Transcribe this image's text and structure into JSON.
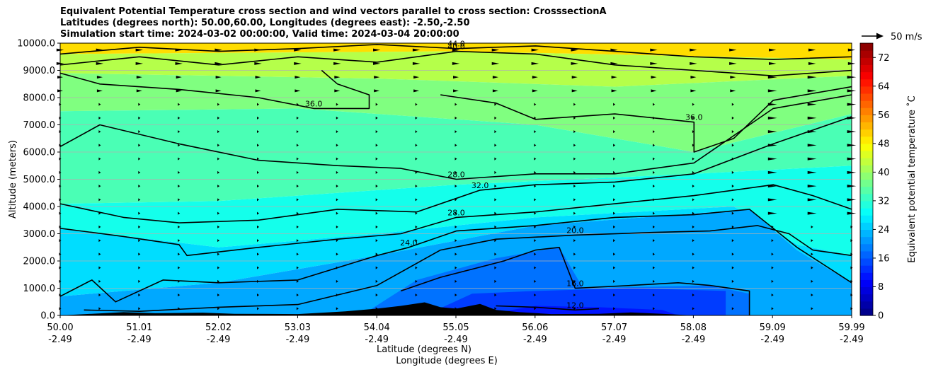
{
  "title_lines": [
    "Equivalent Potential Temperature cross section and wind vectors parallel to cross section: CrosssectionA",
    "Latitudes (degrees north): 50.00,60.00, Longitudes (degrees east): -2.50,-2.50",
    "Simulation start time: 2024-03-02 00:00:00, Valid time: 2024-03-04 20:00:00"
  ],
  "chart_data": {
    "type": "heatmap",
    "subtype": "cross-section contour fill with wind vectors",
    "ylabel": "Altitude (meters)",
    "xlabel_line1": "Latitude (degrees N)",
    "xlabel_line2": "Longitude (degrees E)",
    "ylim": [
      0,
      10000
    ],
    "y_ticks": [
      "0.0",
      "1000.0",
      "2000.0",
      "3000.0",
      "4000.0",
      "5000.0",
      "6000.0",
      "7000.0",
      "8000.0",
      "9000.0",
      "10000.0"
    ],
    "x_ticks": [
      {
        "lat": "50.00",
        "lon": "-2.49"
      },
      {
        "lat": "51.01",
        "lon": "-2.49"
      },
      {
        "lat": "52.02",
        "lon": "-2.49"
      },
      {
        "lat": "53.03",
        "lon": "-2.49"
      },
      {
        "lat": "54.04",
        "lon": "-2.49"
      },
      {
        "lat": "55.05",
        "lon": "-2.49"
      },
      {
        "lat": "56.06",
        "lon": "-2.49"
      },
      {
        "lat": "57.07",
        "lon": "-2.49"
      },
      {
        "lat": "58.08",
        "lon": "-2.49"
      },
      {
        "lat": "59.09",
        "lon": "-2.49"
      },
      {
        "lat": "59.99",
        "lon": "-2.49"
      }
    ],
    "grid": true,
    "colorbar": {
      "label": "Equivalent potential temperature ˚C",
      "vmin": 0,
      "vmax": 76,
      "step": 2,
      "ticks": [
        "0",
        "8",
        "16",
        "24",
        "32",
        "40",
        "48",
        "56",
        "64",
        "72"
      ]
    },
    "wind_key": {
      "label": "50 m/s"
    },
    "contours": [
      {
        "level": 12.0,
        "label": "12.0",
        "points": [
          [
            55.5,
            350
          ],
          [
            56.0,
            300
          ],
          [
            56.5,
            200
          ],
          [
            56.8,
            250
          ]
        ]
      },
      {
        "level": 16.0,
        "label": "16.0",
        "points": [
          [
            54.3,
            900
          ],
          [
            54.8,
            1400
          ],
          [
            55.2,
            1700
          ],
          [
            55.6,
            2000
          ],
          [
            56.0,
            2400
          ],
          [
            56.3,
            2500
          ],
          [
            56.5,
            1000
          ],
          [
            57.2,
            1100
          ],
          [
            57.8,
            1200
          ],
          [
            58.2,
            1100
          ],
          [
            58.7,
            900
          ],
          [
            58.7,
            0
          ]
        ]
      },
      {
        "level": 20.0,
        "label": "20.0",
        "points": [
          [
            50.3,
            200
          ],
          [
            51.0,
            150
          ],
          [
            52.0,
            300
          ],
          [
            53.0,
            400
          ],
          [
            54.0,
            1100
          ],
          [
            54.8,
            2400
          ],
          [
            55.5,
            2800
          ],
          [
            56.5,
            2950
          ],
          [
            57.5,
            3050
          ],
          [
            58.2,
            3100
          ],
          [
            58.8,
            3300
          ],
          [
            59.2,
            3000
          ],
          [
            59.5,
            2400
          ],
          [
            59.99,
            2200
          ]
        ]
      },
      {
        "level": 24.0,
        "label": "24.0",
        "points": [
          [
            50.0,
            700
          ],
          [
            50.4,
            1300
          ],
          [
            50.7,
            500
          ],
          [
            51.3,
            1300
          ],
          [
            52.0,
            1200
          ],
          [
            53.0,
            1300
          ],
          [
            54.0,
            2200
          ],
          [
            54.4,
            2500
          ],
          [
            55.0,
            3100
          ],
          [
            56.0,
            3300
          ],
          [
            57.0,
            3600
          ],
          [
            58.0,
            3700
          ],
          [
            58.7,
            3900
          ],
          [
            59.3,
            2500
          ],
          [
            59.99,
            1200
          ]
        ]
      },
      {
        "level": 28.0,
        "label": "28.0",
        "points": [
          [
            50.0,
            3200
          ],
          [
            50.8,
            2900
          ],
          [
            51.5,
            2600
          ],
          [
            51.6,
            2200
          ],
          [
            52.5,
            2500
          ],
          [
            53.5,
            2800
          ],
          [
            54.3,
            3000
          ],
          [
            55.0,
            3600
          ],
          [
            56.0,
            3800
          ],
          [
            57.0,
            4100
          ],
          [
            58.0,
            4400
          ],
          [
            58.5,
            4600
          ],
          [
            59.0,
            4800
          ],
          [
            59.5,
            4400
          ],
          [
            59.99,
            3900
          ]
        ]
      },
      {
        "level": 32.0,
        "label": "32.0",
        "points": [
          [
            50.0,
            4100
          ],
          [
            50.8,
            3600
          ],
          [
            51.5,
            3400
          ],
          [
            52.5,
            3500
          ],
          [
            53.5,
            3900
          ],
          [
            54.5,
            3800
          ],
          [
            55.3,
            4600
          ],
          [
            56.0,
            4800
          ],
          [
            57.0,
            4900
          ],
          [
            58.0,
            5200
          ],
          [
            59.0,
            6300
          ],
          [
            59.99,
            7300
          ]
        ]
      },
      {
        "level": 28.0,
        "label": "28.0",
        "points": [
          [
            50.0,
            6200
          ],
          [
            50.5,
            7000
          ],
          [
            51.5,
            6300
          ],
          [
            52.5,
            5700
          ],
          [
            53.5,
            5500
          ],
          [
            54.3,
            5400
          ],
          [
            55.0,
            5000
          ],
          [
            56.0,
            5200
          ],
          [
            57.0,
            5200
          ],
          [
            58.0,
            5600
          ],
          [
            59.0,
            7600
          ],
          [
            59.99,
            8100
          ]
        ]
      },
      {
        "level": 36.0,
        "label": "36.0",
        "points": [
          [
            53.3,
            9000
          ],
          [
            53.5,
            8500
          ],
          [
            53.9,
            8100
          ],
          [
            53.9,
            7600
          ],
          [
            53.2,
            7600
          ],
          [
            52.5,
            8000
          ],
          [
            51.5,
            8300
          ],
          [
            50.5,
            8500
          ],
          [
            50.0,
            8900
          ]
        ]
      },
      {
        "level": 36.0,
        "label": "36.0",
        "points": [
          [
            54.8,
            8100
          ],
          [
            55.5,
            7800
          ],
          [
            56.0,
            7200
          ],
          [
            57.0,
            7400
          ],
          [
            58.0,
            7100
          ],
          [
            58.0,
            6000
          ],
          [
            58.5,
            6500
          ],
          [
            59.0,
            7900
          ],
          [
            59.99,
            8400
          ]
        ]
      },
      {
        "level": 40.0,
        "label": "40.0",
        "points": [
          [
            50.0,
            9200
          ],
          [
            51.0,
            9500
          ],
          [
            52.0,
            9200
          ],
          [
            53.0,
            9500
          ],
          [
            54.0,
            9300
          ],
          [
            55.0,
            9700
          ],
          [
            56.0,
            9600
          ],
          [
            57.0,
            9200
          ],
          [
            58.0,
            9000
          ],
          [
            59.0,
            8800
          ],
          [
            59.99,
            9000
          ]
        ]
      },
      {
        "level": 44.0,
        "label": "44.0",
        "points": [
          [
            50.0,
            9600
          ],
          [
            51.0,
            9850
          ],
          [
            52.0,
            9700
          ],
          [
            53.0,
            9800
          ],
          [
            54.0,
            9950
          ],
          [
            55.0,
            9800
          ],
          [
            56.0,
            9900
          ],
          [
            57.0,
            9700
          ],
          [
            58.0,
            9500
          ],
          [
            59.0,
            9400
          ],
          [
            59.99,
            9500
          ]
        ]
      }
    ],
    "terrain": [
      [
        50.0,
        0
      ],
      [
        50.4,
        60
      ],
      [
        50.8,
        120
      ],
      [
        51.2,
        80
      ],
      [
        51.8,
        100
      ],
      [
        52.2,
        60
      ],
      [
        53.0,
        50
      ],
      [
        53.6,
        150
      ],
      [
        54.0,
        250
      ],
      [
        54.3,
        350
      ],
      [
        54.6,
        480
      ],
      [
        54.8,
        300
      ],
      [
        55.0,
        250
      ],
      [
        55.3,
        420
      ],
      [
        55.5,
        200
      ],
      [
        55.8,
        120
      ],
      [
        56.2,
        50
      ],
      [
        56.8,
        60
      ],
      [
        57.2,
        110
      ],
      [
        57.6,
        60
      ],
      [
        58.0,
        0
      ]
    ]
  }
}
